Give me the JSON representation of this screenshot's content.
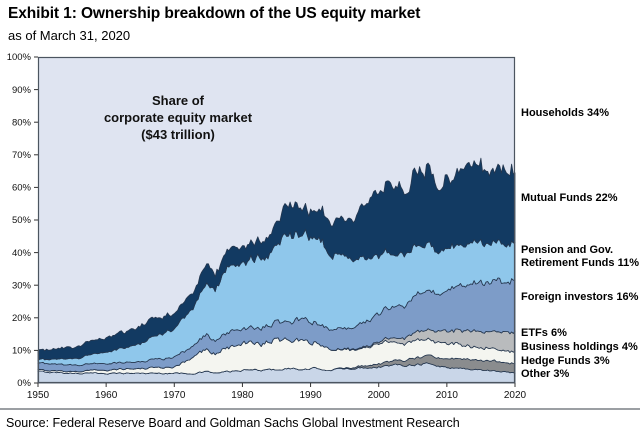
{
  "header": {
    "title": "Exhibit 1: Ownership breakdown of the US equity market",
    "subtitle": "as of March 31, 2020"
  },
  "footer": {
    "source": "Source: Federal Reserve Board and Goldman Sachs Global Investment Research"
  },
  "annotation": {
    "line1": "Share of",
    "line2": "corporate equity market",
    "line3": "($43 trillion)"
  },
  "chart_data": {
    "type": "area",
    "stacked": true,
    "title": "Share of corporate equity market ($43 trillion)",
    "xlabel": "",
    "ylabel": "",
    "ylim": [
      0,
      100
    ],
    "xlim": [
      1950,
      2020
    ],
    "grid": false,
    "yticks": [
      "0%",
      "10%",
      "20%",
      "30%",
      "40%",
      "50%",
      "60%",
      "70%",
      "80%",
      "90%",
      "100%"
    ],
    "xticks": [
      1950,
      1960,
      1970,
      1980,
      1990,
      2000,
      2010,
      2020
    ],
    "x": [
      1950,
      1955,
      1960,
      1965,
      1970,
      1973,
      1975,
      1976,
      1978,
      1981,
      1984,
      1987,
      1989,
      1991,
      1993,
      1996,
      2000,
      2003,
      2007,
      2009,
      2012,
      2015,
      2018,
      2020
    ],
    "series": [
      {
        "name": "Other",
        "share_2020": "3%",
        "color": "#c9d6e8",
        "values": [
          3.5,
          3.0,
          3.0,
          3.0,
          3.0,
          3.0,
          3.5,
          3.0,
          3.5,
          4.0,
          4.0,
          4.5,
          4.0,
          4.5,
          4.0,
          4.5,
          5.0,
          5.5,
          6.0,
          5.0,
          4.5,
          4.0,
          3.5,
          3.0
        ]
      },
      {
        "name": "Hedge Funds",
        "share_2020": "3%",
        "color": "#8a8c8e",
        "values": [
          0,
          0,
          0,
          0,
          0,
          0,
          0,
          0,
          0,
          0,
          0,
          0,
          0,
          0,
          0,
          0.3,
          1.0,
          1.5,
          2.5,
          2.5,
          3.0,
          3.0,
          3.0,
          3.0
        ]
      },
      {
        "name": "Business holdings",
        "share_2020": "4%",
        "color": "#f4f5f0",
        "values": [
          0.5,
          0.5,
          1.0,
          1.5,
          2.0,
          5.0,
          7.0,
          6.0,
          7.5,
          8.0,
          8.5,
          9.5,
          8.0,
          7.5,
          6.0,
          5.5,
          6.0,
          5.5,
          5.0,
          4.5,
          4.5,
          4.0,
          4.0,
          4.0
        ]
      },
      {
        "name": "ETFs",
        "share_2020": "6%",
        "color": "#b9bbbd",
        "values": [
          0,
          0,
          0,
          0,
          0,
          0,
          0,
          0,
          0,
          0,
          0,
          0,
          0,
          0,
          0,
          0.2,
          0.5,
          1.5,
          3.0,
          3.5,
          4.5,
          5.0,
          5.5,
          6.0
        ]
      },
      {
        "name": "Foreign investors",
        "share_2020": "16%",
        "color": "#7d9cc8",
        "values": [
          2.0,
          2.0,
          2.0,
          2.0,
          3.0,
          3.5,
          4.5,
          4.0,
          4.5,
          4.5,
          5.0,
          6.0,
          6.5,
          6.0,
          6.0,
          6.5,
          8.5,
          10.0,
          12.0,
          12.0,
          14.0,
          15.0,
          15.5,
          16.0
        ]
      },
      {
        "name": "Pension and Gov. Retirement Funds",
        "share_2020": "11%",
        "color": "#8fc7eb",
        "values": [
          1.0,
          2.0,
          3.5,
          5.5,
          9.0,
          12.0,
          16.0,
          15.5,
          20.0,
          21.0,
          22.5,
          28.0,
          26.0,
          27.0,
          23.0,
          21.5,
          18.0,
          16.0,
          14.5,
          13.0,
          12.5,
          12.0,
          11.5,
          11.0
        ]
      },
      {
        "name": "Mutual Funds",
        "share_2020": "22%",
        "color": "#123a62",
        "values": [
          3.0,
          3.5,
          4.5,
          5.5,
          5.0,
          5.0,
          7.0,
          4.5,
          5.5,
          5.0,
          5.5,
          9.5,
          8.0,
          9.0,
          10.0,
          13.0,
          21.0,
          20.0,
          24.0,
          21.5,
          22.0,
          23.0,
          23.5,
          22.0
        ]
      }
    ],
    "households": {
      "name": "Households",
      "share_2020": "34%",
      "color": "#dfe4f1",
      "note": "remainder of 100% (background band at top)"
    },
    "right_labels": [
      {
        "text": "Households 34%"
      },
      {
        "text": "Mutual Funds 22%"
      },
      {
        "text": "Pension and Gov. Retirement Funds 11%"
      },
      {
        "text": "Foreign investors 16%"
      },
      {
        "text": "ETFs 6%"
      },
      {
        "text": "Business holdings 4%"
      },
      {
        "text": "Hedge Funds 3%"
      },
      {
        "text": "Other 3%"
      }
    ],
    "colors": {
      "outline": "#24364e",
      "frame": "#4c5560",
      "tick_text": "#111111"
    }
  }
}
